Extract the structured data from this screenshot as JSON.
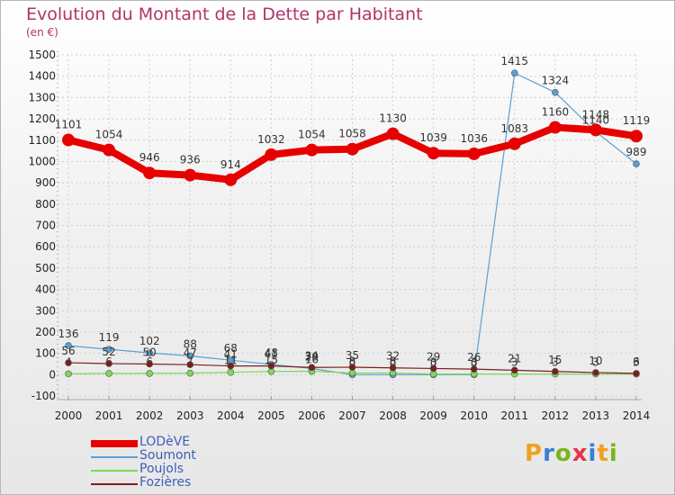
{
  "header": {
    "title": "Evolution du Montant de la Dette par Habitant",
    "unit": "(en €)"
  },
  "logo": {
    "text": "Proxiti",
    "colors": [
      "#f0a020",
      "#3a7fd5",
      "#7ab51d",
      "#e8334a",
      "#3a7fd5",
      "#f0a020",
      "#7ab51d"
    ]
  },
  "chart_data": {
    "type": "line",
    "title": "Evolution du Montant de la Dette par Habitant",
    "ylabel": "(en €)",
    "xlabel": "",
    "ylim": [
      -100,
      1500
    ],
    "yticks": [
      -100,
      0,
      100,
      200,
      300,
      400,
      500,
      600,
      700,
      800,
      900,
      1000,
      1100,
      1200,
      1300,
      1400,
      1500
    ],
    "x": [
      "2000",
      "2001",
      "2002",
      "2003",
      "2004",
      "2005",
      "2006",
      "2007",
      "2008",
      "2009",
      "2010",
      "2011",
      "2012",
      "2013",
      "2014"
    ],
    "grid": true,
    "legend_position": "bottom-left",
    "series": [
      {
        "name": "LODèVE",
        "color": "#e60000",
        "values": [
          1101,
          1054,
          946,
          936,
          914,
          1032,
          1054,
          1058,
          1130,
          1039,
          1036,
          1083,
          1160,
          1148,
          1119
        ]
      },
      {
        "name": "Soumont",
        "color": "#5a9fd4",
        "values": [
          136,
          119,
          102,
          88,
          68,
          48,
          29,
          0,
          0,
          0,
          0,
          1415,
          1324,
          1140,
          989
        ]
      },
      {
        "name": "Poujols",
        "color": "#7ed957",
        "values": [
          4,
          6,
          6,
          7,
          11,
          15,
          16,
          8,
          8,
          3,
          3,
          3,
          3,
          3,
          3
        ]
      },
      {
        "name": "Fozières",
        "color": "#7a1f1f",
        "values": [
          56,
          52,
          50,
          47,
          41,
          41,
          34,
          35,
          32,
          29,
          26,
          21,
          15,
          10,
          6
        ]
      }
    ]
  }
}
